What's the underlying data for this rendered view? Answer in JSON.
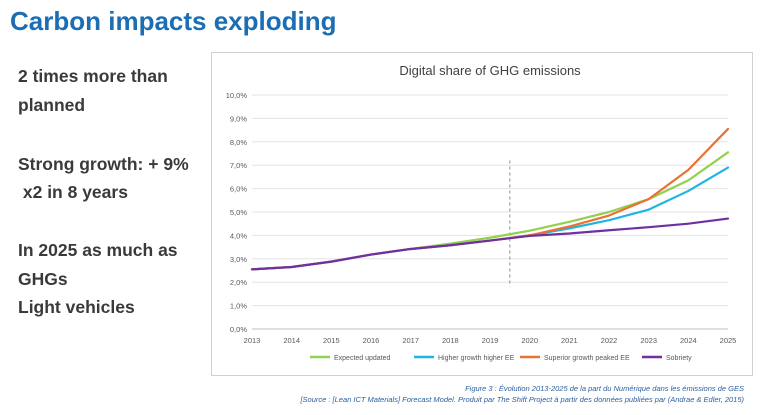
{
  "slide": {
    "title": "Carbon impacts exploding",
    "bullets": [
      "2 times more than",
      "planned",
      "Strong growth: + 9%",
      " x2 in 8 years",
      "In 2025 as much as",
      "GHGs",
      "Light vehicles"
    ],
    "caption": [
      "Figure 3 : Évolution 2013-2025 de la part du Numérique dans les émissions de GES",
      "[Source : [Lean ICT Materials] Forecast Model. Produit par The Shift Project à partir des données publiées par (Andrae & Edler, 2015)"
    ]
  },
  "chart_data": {
    "type": "line",
    "title": "Digital share of GHG emissions",
    "x": [
      2013,
      2014,
      2015,
      2016,
      2017,
      2018,
      2019,
      2020,
      2021,
      2022,
      2023,
      2024,
      2025
    ],
    "x_ticks": [
      "2013",
      "2014",
      "2015",
      "2016",
      "2017",
      "2018",
      "2019",
      "2020",
      "2021",
      "2022",
      "2023",
      "2024",
      "2025"
    ],
    "y_ticks": [
      "0,0%",
      "1,0%",
      "2,0%",
      "3,0%",
      "4,0%",
      "5,0%",
      "6,0%",
      "7,0%",
      "8,0%",
      "9,0%",
      "10,0%"
    ],
    "ylim": [
      0,
      10
    ],
    "grid": true,
    "legend_position": "bottom",
    "vertical_marker_x": 2019.5,
    "series": [
      {
        "name": "Expected updated",
        "color": "#92d050",
        "values": [
          2.55,
          2.65,
          2.88,
          3.18,
          3.42,
          3.65,
          3.9,
          4.2,
          4.58,
          5.0,
          5.55,
          6.35,
          7.55
        ]
      },
      {
        "name": "Higher growth higher EE",
        "color": "#1fb4e6",
        "values": [
          2.55,
          2.65,
          2.88,
          3.18,
          3.42,
          3.58,
          3.78,
          4.0,
          4.3,
          4.65,
          5.1,
          5.9,
          6.9
        ]
      },
      {
        "name": "Superior growth peaked EE",
        "color": "#e97132",
        "values": [
          2.55,
          2.65,
          2.88,
          3.18,
          3.42,
          3.58,
          3.78,
          4.0,
          4.38,
          4.85,
          5.55,
          6.8,
          8.55
        ]
      },
      {
        "name": "Sobriety",
        "color": "#7030a0",
        "values": [
          2.55,
          2.65,
          2.88,
          3.18,
          3.42,
          3.58,
          3.78,
          3.98,
          4.08,
          4.22,
          4.35,
          4.5,
          4.72
        ]
      }
    ]
  }
}
